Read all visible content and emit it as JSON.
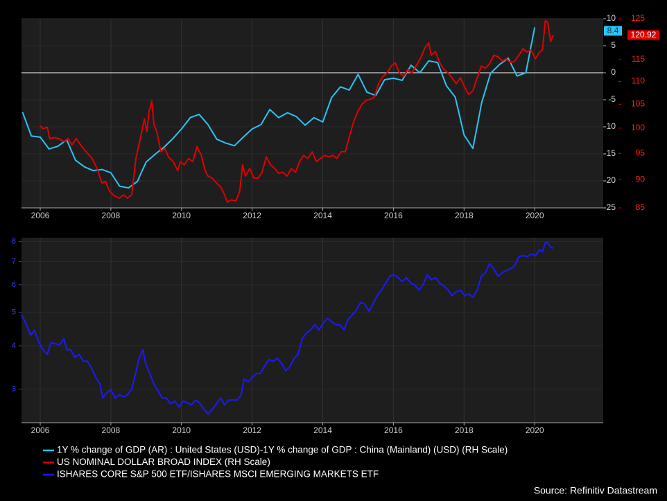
{
  "chart_data": [
    {
      "type": "line",
      "grid": true,
      "zero_line": true,
      "last_value_labels": true,
      "xlim": [
        2005.47,
        2021.94
      ],
      "xticks": [
        2006,
        2008,
        2010,
        2012,
        2014,
        2016,
        2018,
        2020
      ],
      "ylim": [
        -25,
        10
      ],
      "yticks": [
        -25,
        -20,
        -15,
        -10,
        -5,
        0,
        5,
        10
      ],
      "y2lim": [
        85,
        125
      ],
      "y2log": true,
      "y2ticks": [
        85,
        90,
        95,
        100,
        105,
        110,
        115,
        125
      ],
      "series": [
        {
          "name": "1Y % change of GDP (AR) : United States (USD)-1Y % change of GDP : China (Mainland) (USD) (RH Scale)",
          "color": "#29c5f6",
          "x": [
            2005.5,
            2005.75,
            2006,
            2006.25,
            2006.5,
            2006.75,
            2007,
            2007.25,
            2007.5,
            2007.75,
            2008,
            2008.25,
            2008.5,
            2008.75,
            2009,
            2009.25,
            2009.5,
            2009.75,
            2010,
            2010.25,
            2010.5,
            2010.75,
            2011,
            2011.25,
            2011.5,
            2011.75,
            2012,
            2012.25,
            2012.5,
            2012.75,
            2013,
            2013.25,
            2013.5,
            2013.75,
            2014,
            2014.25,
            2014.5,
            2014.75,
            2015,
            2015.25,
            2015.5,
            2015.75,
            2016,
            2016.25,
            2016.5,
            2016.75,
            2017,
            2017.25,
            2017.5,
            2017.75,
            2018,
            2018.25,
            2018.5,
            2018.75,
            2019,
            2019.25,
            2019.5,
            2019.75,
            2020
          ],
          "values": [
            -7.3,
            -11.7,
            -11.9,
            -14.1,
            -13.6,
            -12.4,
            -16.2,
            -17.4,
            -18.1,
            -17.9,
            -18.5,
            -21.0,
            -21.3,
            -20.1,
            -16.5,
            -15.1,
            -13.8,
            -12.2,
            -10.4,
            -8.3,
            -7.7,
            -9.6,
            -12.3,
            -13.0,
            -13.5,
            -11.9,
            -10.4,
            -9.6,
            -6.8,
            -8.3,
            -7.4,
            -8.1,
            -9.7,
            -8.3,
            -9.1,
            -4.6,
            -2.6,
            -3.2,
            -0.3,
            -3.6,
            -4.2,
            -1.3,
            -1.0,
            -1.4,
            1.4,
            0.0,
            2.2,
            1.9,
            -2.4,
            -4.5,
            -11.5,
            -14.0,
            -5.5,
            -0.1,
            1.5,
            2.7,
            -0.6,
            0.0,
            8.4
          ]
        },
        {
          "name": "US NOMINAL DOLLAR BROAD INDEX (RH Scale)",
          "color": "#e00000",
          "axis": "y2",
          "x": [
            2006.0,
            2006.08,
            2006.2,
            2006.27,
            2006.39,
            2006.53,
            2006.67,
            2006.79,
            2006.9,
            2007.02,
            2007.18,
            2007.34,
            2007.47,
            2007.61,
            2007.75,
            2007.85,
            2007.96,
            2008.1,
            2008.24,
            2008.36,
            2008.47,
            2008.59,
            2008.71,
            2008.85,
            2008.95,
            2009.02,
            2009.08,
            2009.16,
            2009.22,
            2009.3,
            2009.42,
            2009.53,
            2009.63,
            2009.77,
            2009.89,
            2009.97,
            2010.08,
            2010.2,
            2010.32,
            2010.44,
            2010.56,
            2010.67,
            2010.75,
            2010.87,
            2010.99,
            2011.11,
            2011.22,
            2011.3,
            2011.4,
            2011.54,
            2011.65,
            2011.73,
            2011.81,
            2011.93,
            2012.05,
            2012.17,
            2012.28,
            2012.4,
            2012.52,
            2012.64,
            2012.75,
            2012.87,
            2012.99,
            2013.11,
            2013.23,
            2013.34,
            2013.46,
            2013.58,
            2013.7,
            2013.82,
            2013.93,
            2014.05,
            2014.17,
            2014.29,
            2014.4,
            2014.52,
            2014.64,
            2014.76,
            2014.87,
            2014.99,
            2015.11,
            2015.23,
            2015.35,
            2015.46,
            2015.58,
            2015.7,
            2015.82,
            2015.94,
            2016.05,
            2016.17,
            2016.29,
            2016.41,
            2016.52,
            2016.64,
            2016.76,
            2016.88,
            2017.0,
            2017.07,
            2017.19,
            2017.31,
            2017.43,
            2017.55,
            2017.66,
            2017.78,
            2017.9,
            2018.02,
            2018.13,
            2018.25,
            2018.37,
            2018.49,
            2018.61,
            2018.72,
            2018.84,
            2018.96,
            2019.08,
            2019.19,
            2019.31,
            2019.43,
            2019.55,
            2019.67,
            2019.78,
            2019.9,
            2020.02,
            2020.14,
            2020.22,
            2020.3,
            2020.37,
            2020.45,
            2020.53
          ],
          "values": [
            100.5,
            99.9,
            100.2,
            97.9,
            98.1,
            97.9,
            97.3,
            97.9,
            96.6,
            97.9,
            96.3,
            95.0,
            94.0,
            92.1,
            89.4,
            89.7,
            88.0,
            87.1,
            86.7,
            87.3,
            86.7,
            87.3,
            94.0,
            98.5,
            101.9,
            99.3,
            103.4,
            105.7,
            100.7,
            99.3,
            95.3,
            96.0,
            94.3,
            93.4,
            91.7,
            93.4,
            92.8,
            94.0,
            93.4,
            96.3,
            94.6,
            91.7,
            90.7,
            90.3,
            89.4,
            88.7,
            87.3,
            86.0,
            86.4,
            86.2,
            88.0,
            92.8,
            90.7,
            92.1,
            90.3,
            90.3,
            91.4,
            94.3,
            92.8,
            92.1,
            91.2,
            91.4,
            90.7,
            92.1,
            91.4,
            93.4,
            94.6,
            94.0,
            95.3,
            93.4,
            94.0,
            94.6,
            94.3,
            94.6,
            94.0,
            95.3,
            95.3,
            98.5,
            101.2,
            103.4,
            105.0,
            105.8,
            106.1,
            106.5,
            109.5,
            111.1,
            111.9,
            113.5,
            114.3,
            111.9,
            111.1,
            112.7,
            111.9,
            113.5,
            115.2,
            117.6,
            119.0,
            116.0,
            116.9,
            114.3,
            112.7,
            111.9,
            110.8,
            109.5,
            110.8,
            108.7,
            107.1,
            107.9,
            110.8,
            113.5,
            113.0,
            114.0,
            116.0,
            115.7,
            114.6,
            115.2,
            114.3,
            114.6,
            116.0,
            117.6,
            116.8,
            117.3,
            115.2,
            116.8,
            117.3,
            124.5,
            124.0,
            119.3,
            120.92
          ]
        }
      ]
    },
    {
      "type": "line",
      "grid": true,
      "ylog": true,
      "xlim": [
        2005.47,
        2021.94
      ],
      "xticks": [
        2006,
        2008,
        2010,
        2012,
        2014,
        2016,
        2018,
        2020
      ],
      "ylim": [
        2.4,
        8.2
      ],
      "yticks": [
        3,
        4,
        5,
        6,
        7,
        8
      ],
      "series": [
        {
          "name": "ISHARES CORE S&P 500 ETF/ISHARES MSCI EMERGING MARKETS ETF",
          "color": "#1a1aff",
          "x": [
            2005.47,
            2005.61,
            2005.73,
            2005.84,
            2005.96,
            2006.08,
            2006.2,
            2006.31,
            2006.43,
            2006.55,
            2006.67,
            2006.75,
            2006.86,
            2006.98,
            2007.1,
            2007.22,
            2007.34,
            2007.45,
            2007.57,
            2007.69,
            2007.77,
            2007.89,
            2008.0,
            2008.12,
            2008.24,
            2008.36,
            2008.47,
            2008.59,
            2008.71,
            2008.79,
            2008.91,
            2008.98,
            2009.1,
            2009.22,
            2009.34,
            2009.45,
            2009.57,
            2009.69,
            2009.81,
            2009.93,
            2010.04,
            2010.16,
            2010.28,
            2010.4,
            2010.51,
            2010.63,
            2010.75,
            2010.87,
            2010.99,
            2011.11,
            2011.22,
            2011.34,
            2011.46,
            2011.58,
            2011.69,
            2011.77,
            2011.89,
            2012.01,
            2012.13,
            2012.24,
            2012.36,
            2012.48,
            2012.6,
            2012.72,
            2012.83,
            2012.95,
            2013.07,
            2013.19,
            2013.3,
            2013.42,
            2013.54,
            2013.66,
            2013.78,
            2013.89,
            2014.01,
            2014.13,
            2014.25,
            2014.37,
            2014.48,
            2014.6,
            2014.72,
            2014.84,
            2014.95,
            2015.07,
            2015.19,
            2015.31,
            2015.42,
            2015.54,
            2015.66,
            2015.78,
            2015.9,
            2016.01,
            2016.13,
            2016.25,
            2016.37,
            2016.49,
            2016.6,
            2016.72,
            2016.84,
            2016.96,
            2017.07,
            2017.19,
            2017.31,
            2017.43,
            2017.55,
            2017.66,
            2017.78,
            2017.9,
            2018.02,
            2018.13,
            2018.25,
            2018.37,
            2018.49,
            2018.61,
            2018.72,
            2018.84,
            2018.96,
            2019.08,
            2019.19,
            2019.31,
            2019.43,
            2019.55,
            2019.67,
            2019.78,
            2019.9,
            2020.02,
            2020.14,
            2020.22,
            2020.3,
            2020.37,
            2020.45,
            2020.53
          ],
          "values": [
            4.92,
            4.6,
            4.29,
            4.44,
            4.09,
            3.9,
            3.78,
            4.09,
            4.05,
            4.03,
            4.19,
            3.9,
            3.9,
            3.7,
            3.78,
            3.61,
            3.61,
            3.45,
            3.25,
            3.1,
            2.83,
            2.93,
            2.99,
            2.83,
            2.89,
            2.85,
            2.89,
            2.99,
            3.36,
            3.65,
            3.9,
            3.56,
            3.33,
            3.1,
            2.96,
            2.83,
            2.83,
            2.72,
            2.77,
            2.66,
            2.77,
            2.74,
            2.7,
            2.79,
            2.74,
            2.63,
            2.54,
            2.62,
            2.72,
            2.83,
            2.7,
            2.79,
            2.79,
            2.79,
            2.89,
            3.21,
            3.15,
            3.25,
            3.33,
            3.33,
            3.51,
            3.65,
            3.61,
            3.68,
            3.56,
            3.39,
            3.48,
            3.68,
            3.78,
            4.19,
            4.36,
            4.45,
            4.6,
            4.44,
            4.64,
            4.8,
            4.7,
            4.6,
            4.6,
            4.45,
            4.77,
            4.92,
            5.07,
            5.33,
            5.28,
            5.03,
            5.28,
            5.58,
            5.79,
            6.06,
            6.35,
            6.41,
            6.29,
            6.12,
            6.29,
            6.06,
            6.0,
            5.79,
            6.0,
            6.41,
            6.2,
            6.29,
            6.06,
            5.94,
            5.79,
            5.58,
            5.73,
            5.79,
            5.58,
            5.64,
            5.52,
            5.79,
            6.35,
            6.5,
            6.9,
            6.67,
            6.35,
            6.5,
            6.58,
            6.67,
            6.79,
            7.23,
            7.28,
            7.23,
            7.35,
            7.28,
            7.57,
            7.46,
            7.93,
            7.93,
            7.71,
            7.64
          ]
        }
      ]
    }
  ],
  "source": "Source: Refinitiv Datastream"
}
